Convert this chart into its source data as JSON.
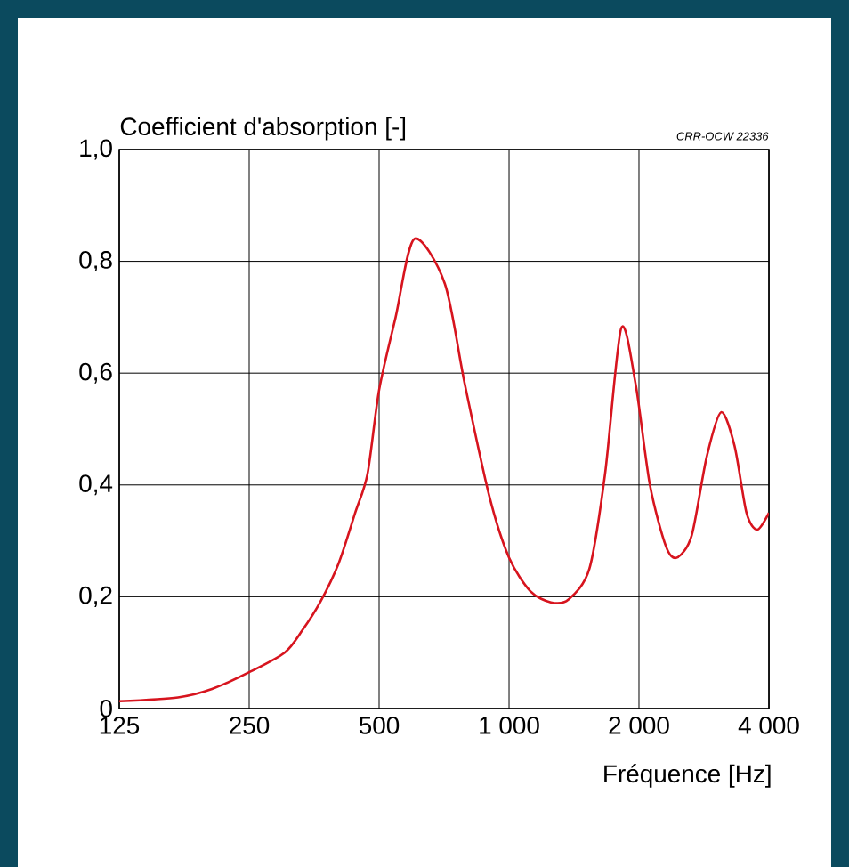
{
  "chart_data": {
    "type": "line",
    "ylabel": "Coefficient d'absorption [-]",
    "xlabel": "Fréquence [Hz]",
    "annotations": [
      "CRR-OCW 22336"
    ],
    "log": "x",
    "grid": true,
    "marker": "none",
    "line_style": "solid",
    "xlim": [
      125,
      4000
    ],
    "ylim": [
      0,
      1.0
    ],
    "xticks": [
      125,
      250,
      500,
      {
        "value": 1000,
        "label": "1 000"
      },
      {
        "value": 2000,
        "label": "2 000"
      },
      {
        "value": 4000,
        "label": "4 000"
      }
    ],
    "yticks": [
      0,
      {
        "value": 0.2,
        "label": "0,2"
      },
      {
        "value": 0.4,
        "label": "0,4"
      },
      {
        "value": 0.6,
        "label": "0,6"
      },
      {
        "value": 0.8,
        "label": "0,8"
      },
      {
        "value": 1.0,
        "label": "1,0"
      }
    ],
    "x": [
      125,
      171,
      205,
      250,
      302,
      332,
      365,
      403,
      440,
      470,
      500,
      546,
      603,
      710,
      790,
      900,
      1000,
      1120,
      1250,
      1373,
      1535,
      1669,
      1819,
      1965,
      2120,
      2310,
      2450,
      2650,
      2870,
      3100,
      3330,
      3550,
      3760,
      4000
    ],
    "series": [
      {
        "color": "#d7141e",
        "values": [
          0.013,
          0.02,
          0.035,
          0.065,
          0.1,
          0.14,
          0.19,
          0.26,
          0.35,
          0.42,
          0.57,
          0.7,
          0.84,
          0.76,
          0.58,
          0.38,
          0.27,
          0.21,
          0.19,
          0.195,
          0.25,
          0.42,
          0.68,
          0.58,
          0.4,
          0.29,
          0.27,
          0.31,
          0.45,
          0.53,
          0.47,
          0.35,
          0.32,
          0.35
        ]
      }
    ]
  }
}
